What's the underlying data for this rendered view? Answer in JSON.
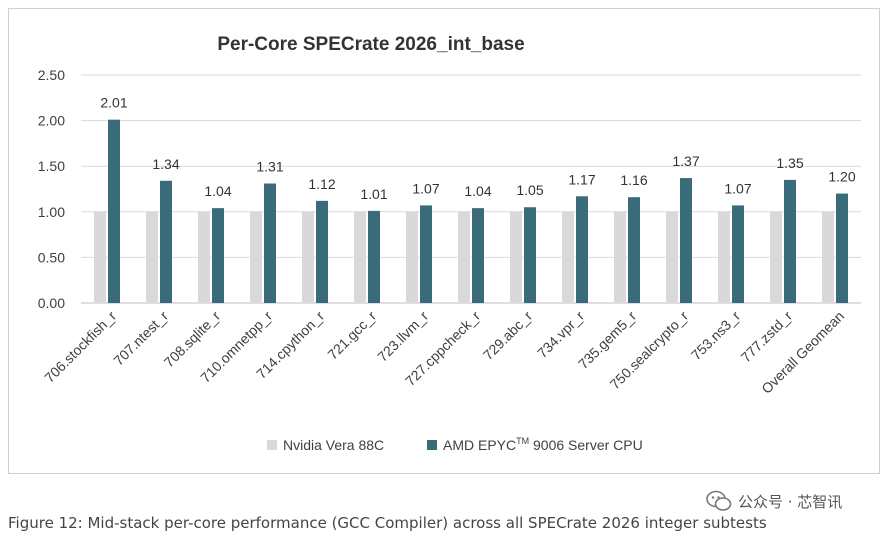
{
  "chart_data": {
    "type": "bar",
    "title": "Per-Core SPECrate 2026_int_base",
    "categories": [
      "706.stockfish_r",
      "707.ntest_r",
      "708.sqlite_r",
      "710.omnetpp_r",
      "714.cpython_r",
      "721.gcc_r",
      "723.llvm_r",
      "727.cppcheck_r",
      "729.abc_r",
      "734.vpr_r",
      "735.gem5_r",
      "750.sealcrypto_r",
      "753.ns3_r",
      "777.zstd_r",
      "Overall Geomean"
    ],
    "series": [
      {
        "name": "Nvidia Vera 88C",
        "color": "#d9d9d9",
        "values": [
          1,
          1,
          1,
          1,
          1,
          1,
          1,
          1,
          1,
          1,
          1,
          1,
          1,
          1,
          1
        ]
      },
      {
        "name": "AMD EPYC™ 9006 Server CPU",
        "legend_base": "AMD EPYC",
        "legend_sup": "TM",
        "legend_tail": " 9006 Server CPU",
        "color": "#3a6b7a",
        "values": [
          2.01,
          1.34,
          1.04,
          1.31,
          1.12,
          1.01,
          1.07,
          1.04,
          1.05,
          1.17,
          1.16,
          1.37,
          1.07,
          1.35,
          1.2
        ]
      }
    ],
    "data_labels": [
      "2.01",
      "1.34",
      "1.04",
      "1.31",
      "1.12",
      "1.01",
      "1.07",
      "1.04",
      "1.05",
      "1.17",
      "1.16",
      "1.37",
      "1.07",
      "1.35",
      "1.20"
    ],
    "yticks": [
      "0.00",
      "0.50",
      "1.00",
      "1.50",
      "2.00",
      "2.50"
    ],
    "ylim": [
      0,
      2.5
    ],
    "xlabel": "",
    "ylabel": "",
    "grid": true,
    "legend": "bottom"
  },
  "caption": "Figure 12: Mid-stack per-core performance (GCC Compiler) across all SPECrate 2026 integer subtests",
  "watermark": "公众号 · 芯智讯",
  "colors": {
    "grid": "#d9d9d9",
    "axis": "#bfbfbf"
  }
}
